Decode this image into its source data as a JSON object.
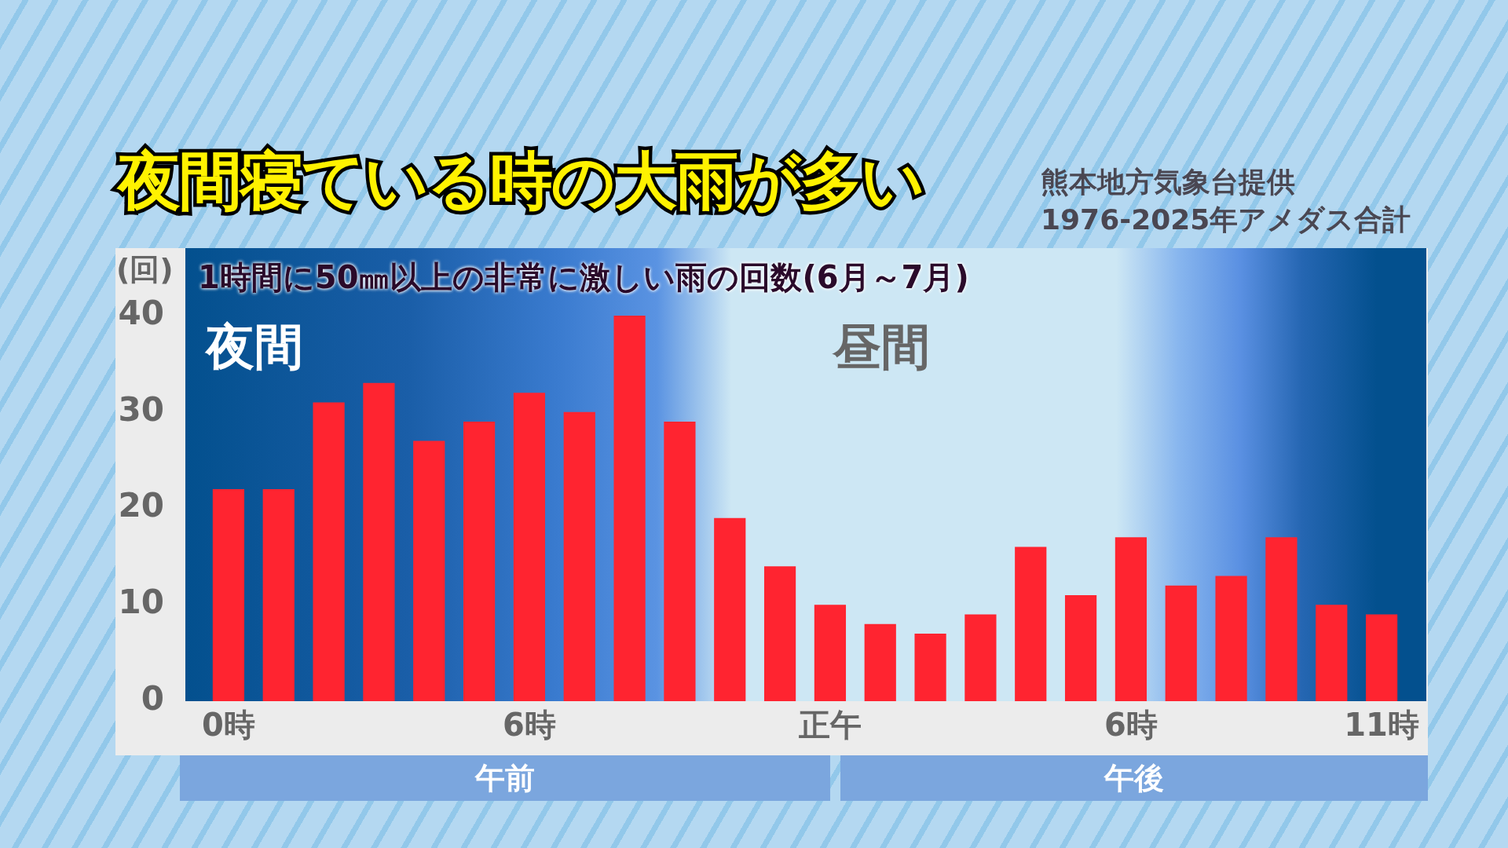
{
  "chart_data": {
    "type": "bar",
    "title": "夜間寝ている時の大雨が多い",
    "subtitle": "1時間に50㎜以上の非常に激しい雨の回数(6月～7月)",
    "ylabel": "(回)",
    "categories": [
      "0時",
      null,
      null,
      null,
      null,
      null,
      "6時",
      null,
      null,
      null,
      null,
      null,
      "正午",
      null,
      null,
      null,
      null,
      null,
      "6時",
      null,
      null,
      null,
      null,
      "11時"
    ],
    "values": [
      22,
      22,
      31,
      33,
      27,
      29,
      32,
      30,
      40,
      29,
      19,
      14,
      10,
      8,
      7,
      9,
      16,
      11,
      17,
      12,
      13,
      17,
      10,
      9
    ],
    "color": "#ff2430",
    "ylim": [
      0,
      47
    ],
    "yticks": [
      0,
      10,
      20,
      30,
      40
    ],
    "grid": false,
    "legend": false,
    "annotations": [
      "夜間",
      "昼間",
      "午前",
      "午後",
      "熊本地方気象台提供",
      "1976-2025年アメダス合計"
    ]
  }
}
